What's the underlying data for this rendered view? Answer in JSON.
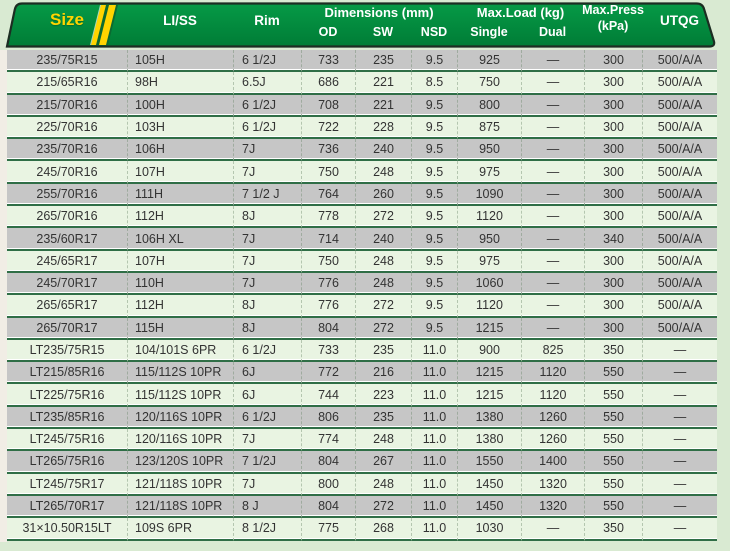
{
  "colors": {
    "page_bg": "#d9ead2",
    "header_green_top": "#069a46",
    "header_green_bottom": "#007c36",
    "header_outline": "#1c2d22",
    "header_text": "#ffffff",
    "size_yellow": "#ffd400",
    "stripe_yellow": "#ffd400",
    "stripe_edge": "#0b6a31",
    "row_light": "#e9f4e2",
    "row_gray": "#c6c6c6",
    "separator_green": "#2f6e46",
    "cell_text": "#333333",
    "gutter": "#f1ede5"
  },
  "header": {
    "size": "Size",
    "li_ss": "LI/SS",
    "rim": "Rim",
    "dimensions_group": "Dimensions (mm)",
    "od": "OD",
    "sw": "SW",
    "nsd": "NSD",
    "max_load_group": "Max.Load (kg)",
    "single": "Single",
    "dual": "Dual",
    "max_press_line1": "Max.Press",
    "max_press_line2": "(kPa)",
    "utqg": "UTQG"
  },
  "table": {
    "column_keys": [
      "size",
      "li-ss",
      "rim",
      "od",
      "sw",
      "nsd",
      "single",
      "dual",
      "max-press",
      "utqg"
    ],
    "rows": [
      [
        "235/75R15",
        "105H",
        "6 1/2J",
        "733",
        "235",
        "9.5",
        "925",
        "—",
        "300",
        "500/A/A"
      ],
      [
        "215/65R16",
        "98H",
        "6.5J",
        "686",
        "221",
        "8.5",
        "750",
        "—",
        "300",
        "500/A/A"
      ],
      [
        "215/70R16",
        "100H",
        "6 1/2J",
        "708",
        "221",
        "9.5",
        "800",
        "—",
        "300",
        "500/A/A"
      ],
      [
        "225/70R16",
        "103H",
        "6 1/2J",
        "722",
        "228",
        "9.5",
        "875",
        "—",
        "300",
        "500/A/A"
      ],
      [
        "235/70R16",
        "106H",
        "7J",
        "736",
        "240",
        "9.5",
        "950",
        "—",
        "300",
        "500/A/A"
      ],
      [
        "245/70R16",
        "107H",
        "7J",
        "750",
        "248",
        "9.5",
        "975",
        "—",
        "300",
        "500/A/A"
      ],
      [
        "255/70R16",
        "111H",
        "7 1/2 J",
        "764",
        "260",
        "9.5",
        "1090",
        "—",
        "300",
        "500/A/A"
      ],
      [
        "265/70R16",
        "112H",
        "8J",
        "778",
        "272",
        "9.5",
        "1120",
        "—",
        "300",
        "500/A/A"
      ],
      [
        "235/60R17",
        "106H XL",
        "7J",
        "714",
        "240",
        "9.5",
        "950",
        "—",
        "340",
        "500/A/A"
      ],
      [
        "245/65R17",
        "107H",
        "7J",
        "750",
        "248",
        "9.5",
        "975",
        "—",
        "300",
        "500/A/A"
      ],
      [
        "245/70R17",
        "110H",
        "7J",
        "776",
        "248",
        "9.5",
        "1060",
        "—",
        "300",
        "500/A/A"
      ],
      [
        "265/65R17",
        "112H",
        "8J",
        "776",
        "272",
        "9.5",
        "1120",
        "—",
        "300",
        "500/A/A"
      ],
      [
        "265/70R17",
        "115H",
        "8J",
        "804",
        "272",
        "9.5",
        "1215",
        "—",
        "300",
        "500/A/A"
      ],
      [
        "LT235/75R15",
        "104/101S 6PR",
        "6 1/2J",
        "733",
        "235",
        "11.0",
        "900",
        "825",
        "350",
        "—"
      ],
      [
        "LT215/85R16",
        "115/112S 10PR",
        "6J",
        "772",
        "216",
        "11.0",
        "1215",
        "1120",
        "550",
        "—"
      ],
      [
        "LT225/75R16",
        "115/112S 10PR",
        "6J",
        "744",
        "223",
        "11.0",
        "1215",
        "1120",
        "550",
        "—"
      ],
      [
        "LT235/85R16",
        "120/116S 10PR",
        "6 1/2J",
        "806",
        "235",
        "11.0",
        "1380",
        "1260",
        "550",
        "—"
      ],
      [
        "LT245/75R16",
        "120/116S 10PR",
        "7J",
        "774",
        "248",
        "11.0",
        "1380",
        "1260",
        "550",
        "—"
      ],
      [
        "LT265/75R16",
        "123/120S 10PR",
        "7 1/2J",
        "804",
        "267",
        "11.0",
        "1550",
        "1400",
        "550",
        "—"
      ],
      [
        "LT245/75R17",
        "121/118S 10PR",
        "7J",
        "800",
        "248",
        "11.0",
        "1450",
        "1320",
        "550",
        "—"
      ],
      [
        "LT265/70R17",
        "121/118S 10PR",
        "8  J",
        "804",
        "272",
        "11.0",
        "1450",
        "1320",
        "550",
        "—"
      ],
      [
        "31×10.50R15LT",
        "109S 6PR",
        "8 1/2J",
        "775",
        "268",
        "11.0",
        "1030",
        "—",
        "350",
        "—"
      ]
    ]
  }
}
